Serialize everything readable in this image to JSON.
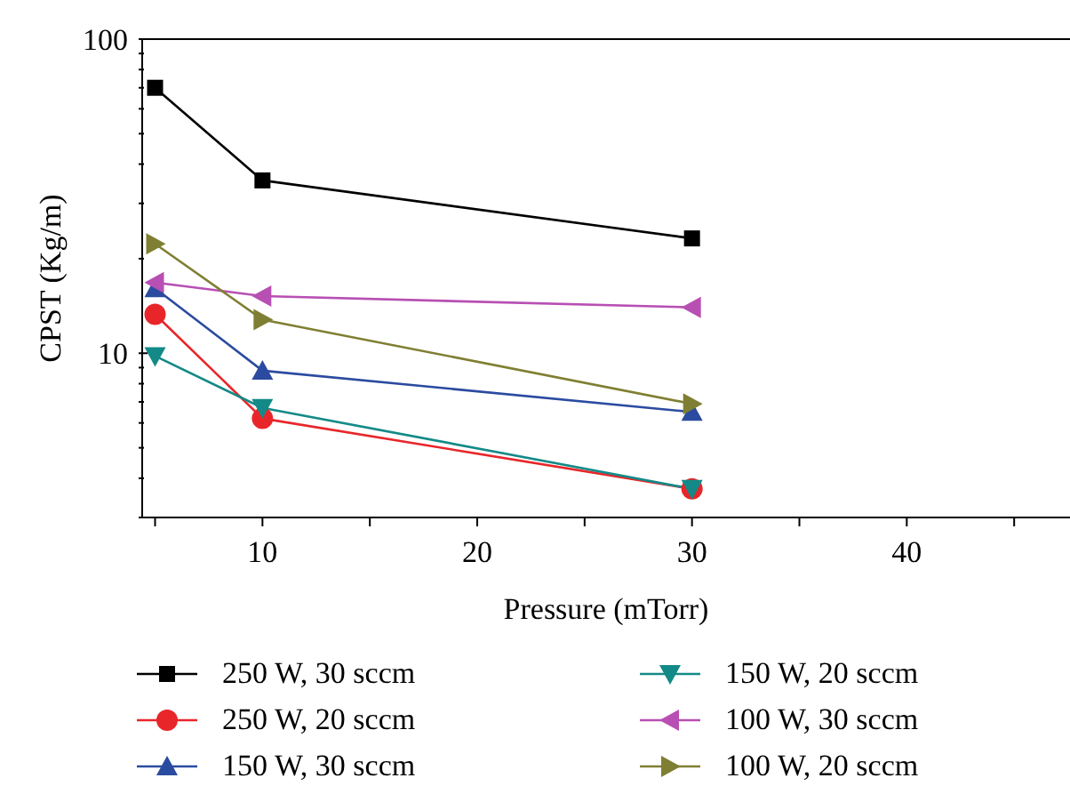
{
  "chart_data": {
    "type": "line",
    "xlabel": "Pressure (mTorr)",
    "ylabel": "CPST (Kg/m)",
    "x": [
      5,
      10,
      30
    ],
    "log": "y",
    "xlim": [
      4.4,
      47.6
    ],
    "xticks": [
      {
        "value": 5,
        "label": null
      },
      10,
      {
        "value": 15,
        "label": null
      },
      20,
      {
        "value": 25,
        "label": null
      },
      30,
      {
        "value": 35,
        "label": null
      },
      40,
      {
        "value": 45,
        "label": null
      }
    ],
    "ylim": [
      3,
      100
    ],
    "yticks": [
      {
        "value": 3,
        "label": null
      },
      {
        "value": 4,
        "label": null
      },
      {
        "value": 5,
        "label": null
      },
      {
        "value": 6,
        "label": null
      },
      {
        "value": 7,
        "label": null
      },
      {
        "value": 8,
        "label": null
      },
      {
        "value": 9,
        "label": null
      },
      10,
      {
        "value": 20,
        "label": null
      },
      {
        "value": 30,
        "label": null
      },
      {
        "value": 40,
        "label": null
      },
      {
        "value": 50,
        "label": null
      },
      {
        "value": 60,
        "label": null
      },
      {
        "value": 70,
        "label": null
      },
      {
        "value": 80,
        "label": null
      },
      {
        "value": 90,
        "label": null
      },
      100
    ],
    "grid": false,
    "legend": "bottom",
    "line_style": "solid",
    "series": [
      {
        "name": "250 W, 30 sccm",
        "color": "#000000",
        "marker": "square",
        "values": [
          70,
          35.5,
          23.2
        ]
      },
      {
        "name": "250 W, 20 sccm",
        "color": "#e8262a",
        "marker": "circle",
        "values": [
          13.3,
          6.2,
          3.7
        ]
      },
      {
        "name": "150 W, 30 sccm",
        "color": "#2b4ba0",
        "marker": "triangle",
        "values": [
          16.1,
          8.8,
          6.5
        ]
      },
      {
        "name": "150 W, 20 sccm",
        "color": "#138a87",
        "marker": "triangle-down",
        "values": [
          9.8,
          6.7,
          3.7
        ]
      },
      {
        "name": "100 W, 30 sccm",
        "color": "#b84fb3",
        "marker": "triangle-left",
        "values": [
          16.8,
          15.2,
          14.0
        ]
      },
      {
        "name": "100 W, 20 sccm",
        "color": "#7f7f33",
        "marker": "triangle-right",
        "values": [
          22.3,
          12.8,
          6.9
        ]
      }
    ]
  }
}
